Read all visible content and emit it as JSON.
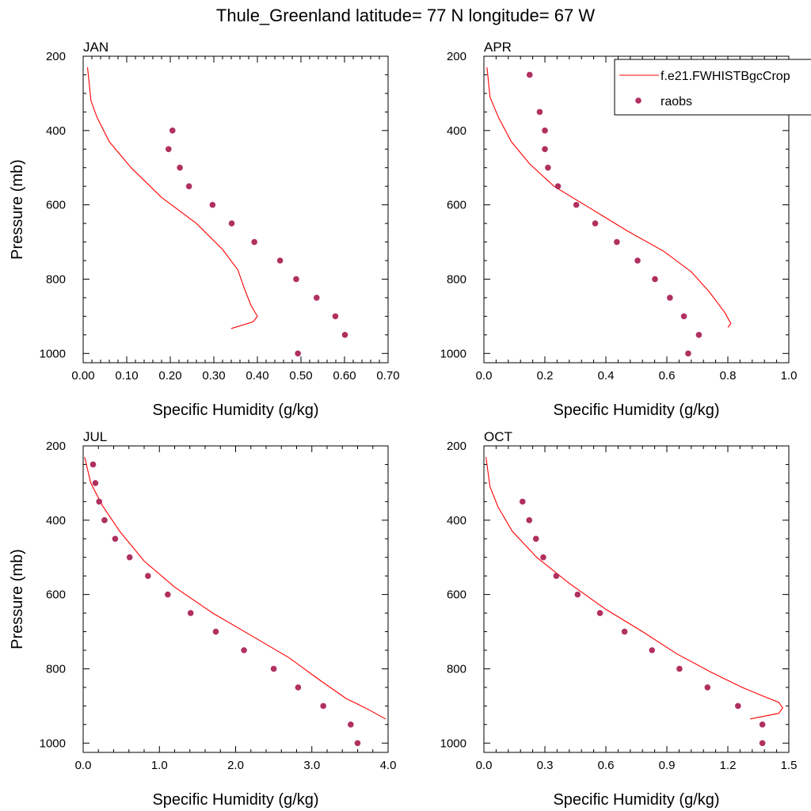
{
  "figure": {
    "title": "Thule_Greenland  latitude= 77 N longitude= 67 W"
  },
  "legend": {
    "entries": [
      {
        "label": "f.e21.FWHISTBgcCrop",
        "kind": "line",
        "color": "#ff0000"
      },
      {
        "label": "raobs",
        "kind": "marker",
        "color": "#b03060"
      }
    ]
  },
  "colors": {
    "model": "#ff0000",
    "raobs": "#b03060",
    "axis": "#000000"
  },
  "chart_data": [
    {
      "type": "line",
      "title": "JAN",
      "xlabel": "Specific Humidity (g/kg)",
      "ylabel": "Pressure (mb)",
      "xlim": [
        0,
        0.7
      ],
      "ylim": [
        200,
        1025
      ],
      "y_inverted": true,
      "xticks": [
        0,
        0.1,
        0.2,
        0.3,
        0.4,
        0.5,
        0.6,
        0.7
      ],
      "xtick_labels": [
        "0.00",
        "0.10",
        "0.20",
        "0.30",
        "0.40",
        "0.50",
        "0.60",
        "0.70"
      ],
      "yticks": [
        200,
        400,
        600,
        800,
        1000
      ],
      "ytick_labels": [
        "200",
        "400",
        "600",
        "800",
        "1000"
      ],
      "series": [
        {
          "name": "f.e21.FWHISTBgcCrop",
          "style": "line",
          "x": [
            0.01,
            0.018,
            0.032,
            0.06,
            0.11,
            0.18,
            0.26,
            0.32,
            0.355,
            0.37,
            0.385,
            0.4,
            0.39,
            0.34
          ],
          "y": [
            230,
            320,
            365,
            430,
            500,
            580,
            650,
            720,
            775,
            825,
            870,
            900,
            915,
            933
          ]
        },
        {
          "name": "raobs",
          "style": "marker",
          "x": [
            0.205,
            0.196,
            0.222,
            0.243,
            0.297,
            0.341,
            0.393,
            0.452,
            0.489,
            0.536,
            0.579,
            0.601,
            0.493
          ],
          "y": [
            400,
            450,
            500,
            550,
            600,
            650,
            700,
            750,
            800,
            850,
            900,
            950,
            1000
          ]
        }
      ]
    },
    {
      "type": "line",
      "title": "APR",
      "xlabel": "Specific Humidity (g/kg)",
      "ylabel": "",
      "xlim": [
        0,
        1.0
      ],
      "ylim": [
        200,
        1025
      ],
      "y_inverted": true,
      "xticks": [
        0,
        0.2,
        0.4,
        0.6,
        0.8,
        1.0
      ],
      "xtick_labels": [
        "0.0",
        "0.2",
        "0.4",
        "0.6",
        "0.8",
        "1.0"
      ],
      "yticks": [
        200,
        400,
        600,
        800,
        1000
      ],
      "ytick_labels": [
        "200",
        "400",
        "600",
        "800",
        "1000"
      ],
      "series": [
        {
          "name": "f.e21.FWHISTBgcCrop",
          "style": "line",
          "x": [
            0.01,
            0.02,
            0.048,
            0.09,
            0.15,
            0.23,
            0.35,
            0.47,
            0.59,
            0.68,
            0.74,
            0.79,
            0.81,
            0.8
          ],
          "y": [
            230,
            310,
            365,
            430,
            490,
            550,
            610,
            670,
            725,
            780,
            835,
            890,
            920,
            930
          ]
        },
        {
          "name": "raobs",
          "style": "marker",
          "x": [
            0.15,
            0.183,
            0.2,
            0.2,
            0.21,
            0.243,
            0.303,
            0.365,
            0.436,
            0.504,
            0.561,
            0.61,
            0.656,
            0.705,
            0.67
          ],
          "y": [
            250,
            350,
            400,
            450,
            500,
            550,
            600,
            650,
            700,
            750,
            800,
            850,
            900,
            950,
            1000
          ]
        }
      ]
    },
    {
      "type": "line",
      "title": "JUL",
      "xlabel": "Specific Humidity (g/kg)",
      "ylabel": "Pressure (mb)",
      "xlim": [
        0,
        4.0
      ],
      "ylim": [
        200,
        1025
      ],
      "y_inverted": true,
      "xticks": [
        0,
        1,
        2,
        3,
        4
      ],
      "xtick_labels": [
        "0.0",
        "1.0",
        "2.0",
        "3.0",
        "4.0"
      ],
      "yticks": [
        200,
        400,
        600,
        800,
        1000
      ],
      "ytick_labels": [
        "200",
        "400",
        "600",
        "800",
        "1000"
      ],
      "series": [
        {
          "name": "f.e21.FWHISTBgcCrop",
          "style": "line",
          "x": [
            0.02,
            0.1,
            0.25,
            0.48,
            0.8,
            1.2,
            1.7,
            2.2,
            2.7,
            3.1,
            3.45,
            3.7,
            3.97
          ],
          "y": [
            230,
            300,
            360,
            430,
            510,
            580,
            650,
            710,
            770,
            830,
            880,
            905,
            935
          ]
        },
        {
          "name": "raobs",
          "style": "marker",
          "x": [
            0.13,
            0.16,
            0.21,
            0.28,
            0.42,
            0.61,
            0.85,
            1.11,
            1.41,
            1.74,
            2.11,
            2.5,
            2.82,
            3.15,
            3.51,
            3.6
          ],
          "y": [
            250,
            300,
            350,
            400,
            450,
            500,
            550,
            600,
            650,
            700,
            750,
            800,
            850,
            900,
            950,
            1000
          ]
        }
      ]
    },
    {
      "type": "line",
      "title": "OCT",
      "xlabel": "Specific Humidity (g/kg)",
      "ylabel": "",
      "xlim": [
        0,
        1.5
      ],
      "ylim": [
        200,
        1025
      ],
      "y_inverted": true,
      "xticks": [
        0,
        0.3,
        0.6,
        0.9,
        1.2,
        1.5
      ],
      "xtick_labels": [
        "0.0",
        "0.3",
        "0.6",
        "0.9",
        "1.2",
        "1.5"
      ],
      "yticks": [
        200,
        400,
        600,
        800,
        1000
      ],
      "ytick_labels": [
        "200",
        "400",
        "600",
        "800",
        "1000"
      ],
      "series": [
        {
          "name": "f.e21.FWHISTBgcCrop",
          "style": "line",
          "x": [
            0.01,
            0.03,
            0.07,
            0.14,
            0.26,
            0.42,
            0.6,
            0.78,
            0.95,
            1.12,
            1.27,
            1.38,
            1.45,
            1.47,
            1.45,
            1.31
          ],
          "y": [
            230,
            310,
            365,
            430,
            500,
            570,
            640,
            700,
            760,
            810,
            850,
            875,
            890,
            905,
            920,
            935
          ]
        },
        {
          "name": "raobs",
          "style": "marker",
          "x": [
            0.19,
            0.223,
            0.256,
            0.292,
            0.356,
            0.461,
            0.571,
            0.692,
            0.827,
            0.962,
            1.1,
            1.25,
            1.37,
            1.37
          ],
          "y": [
            350,
            400,
            450,
            500,
            550,
            600,
            650,
            700,
            750,
            800,
            850,
            900,
            950,
            1000
          ]
        }
      ]
    }
  ]
}
